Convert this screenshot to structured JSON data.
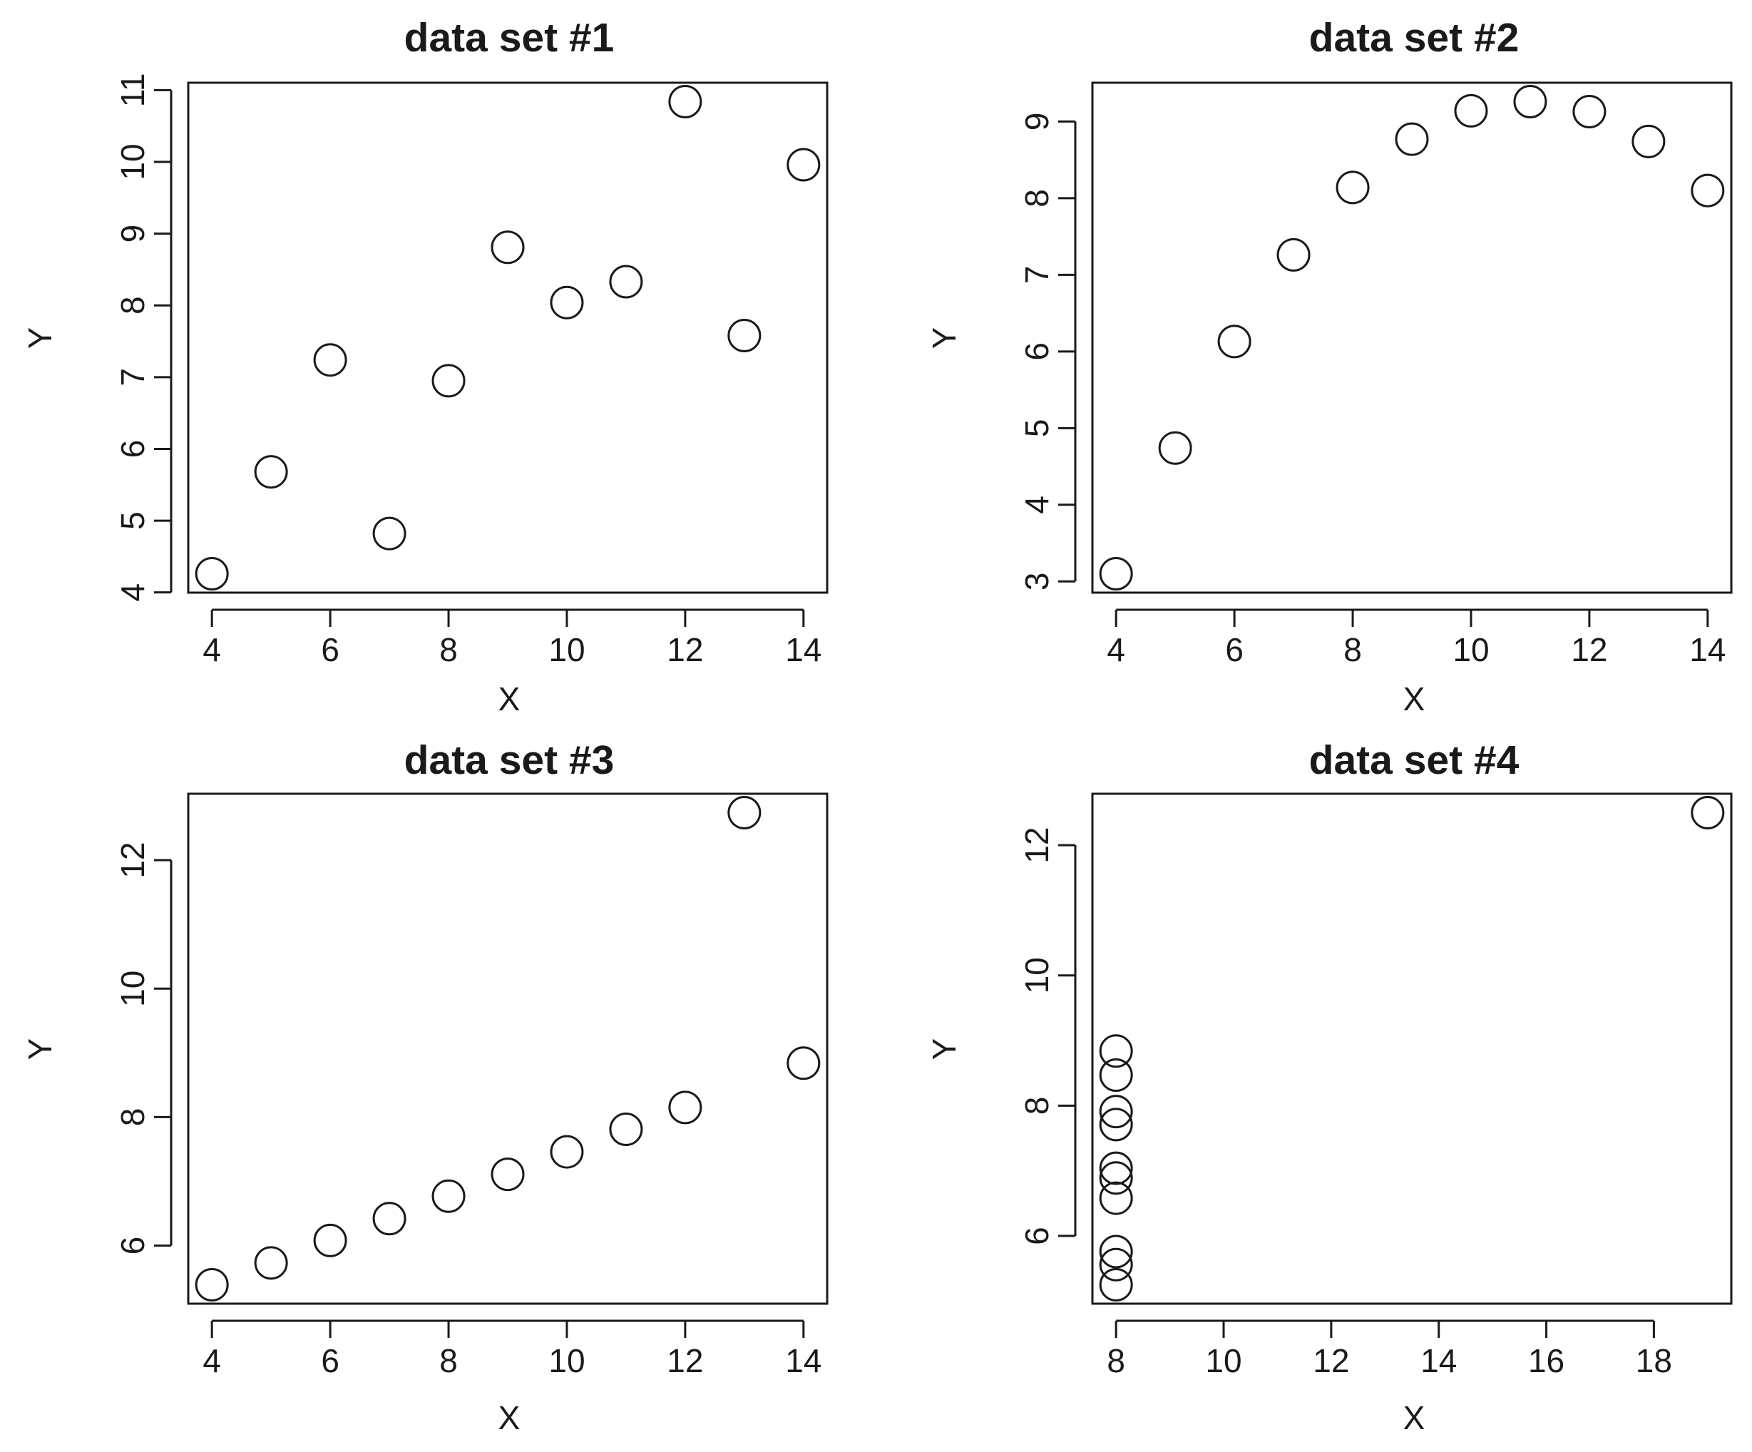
{
  "chart_data": [
    {
      "type": "scatter",
      "title": "data set #1",
      "xlabel": "X",
      "ylabel": "Y",
      "xlim": [
        4,
        14
      ],
      "ylim": [
        4,
        11
      ],
      "xticks": [
        4,
        6,
        8,
        10,
        12,
        14
      ],
      "yticks": [
        4,
        5,
        6,
        7,
        8,
        9,
        10,
        11
      ],
      "grid": false,
      "marker": "open-circle",
      "x": [
        10,
        8,
        13,
        9,
        11,
        14,
        6,
        4,
        12,
        7,
        5
      ],
      "y": [
        8.04,
        6.95,
        7.58,
        8.81,
        8.33,
        9.96,
        7.24,
        4.26,
        10.84,
        4.82,
        5.68
      ]
    },
    {
      "type": "scatter",
      "title": "data set #2",
      "xlabel": "X",
      "ylabel": "Y",
      "xlim": [
        4,
        14
      ],
      "ylim": [
        3,
        9
      ],
      "xticks": [
        4,
        6,
        8,
        10,
        12,
        14
      ],
      "yticks": [
        3,
        4,
        5,
        6,
        7,
        8,
        9
      ],
      "grid": false,
      "marker": "open-circle",
      "x": [
        10,
        8,
        13,
        9,
        11,
        14,
        6,
        4,
        12,
        7,
        5
      ],
      "y": [
        9.14,
        8.14,
        8.74,
        8.77,
        9.26,
        8.1,
        6.13,
        3.1,
        9.13,
        7.26,
        4.74
      ]
    },
    {
      "type": "scatter",
      "title": "data set #3",
      "xlabel": "X",
      "ylabel": "Y",
      "xlim": [
        4,
        14
      ],
      "ylim": [
        6,
        12
      ],
      "xticks": [
        4,
        6,
        8,
        10,
        12,
        14
      ],
      "yticks": [
        6,
        8,
        10,
        12
      ],
      "grid": false,
      "marker": "open-circle",
      "x": [
        10,
        8,
        13,
        9,
        11,
        14,
        6,
        4,
        12,
        7,
        5
      ],
      "y": [
        7.46,
        6.77,
        12.74,
        7.11,
        7.81,
        8.84,
        6.08,
        5.39,
        8.15,
        6.42,
        5.73
      ]
    },
    {
      "type": "scatter",
      "title": "data set #4",
      "xlabel": "X",
      "ylabel": "Y",
      "xlim": [
        8,
        18
      ],
      "ylim": [
        6,
        12
      ],
      "xticks": [
        8,
        10,
        12,
        14,
        16,
        18
      ],
      "yticks": [
        6,
        8,
        10,
        12
      ],
      "grid": false,
      "marker": "open-circle",
      "x": [
        8,
        8,
        8,
        8,
        8,
        8,
        8,
        19,
        8,
        8,
        8
      ],
      "y": [
        6.58,
        5.76,
        7.71,
        8.84,
        8.47,
        7.04,
        5.25,
        12.5,
        5.56,
        7.91,
        6.89
      ]
    }
  ]
}
